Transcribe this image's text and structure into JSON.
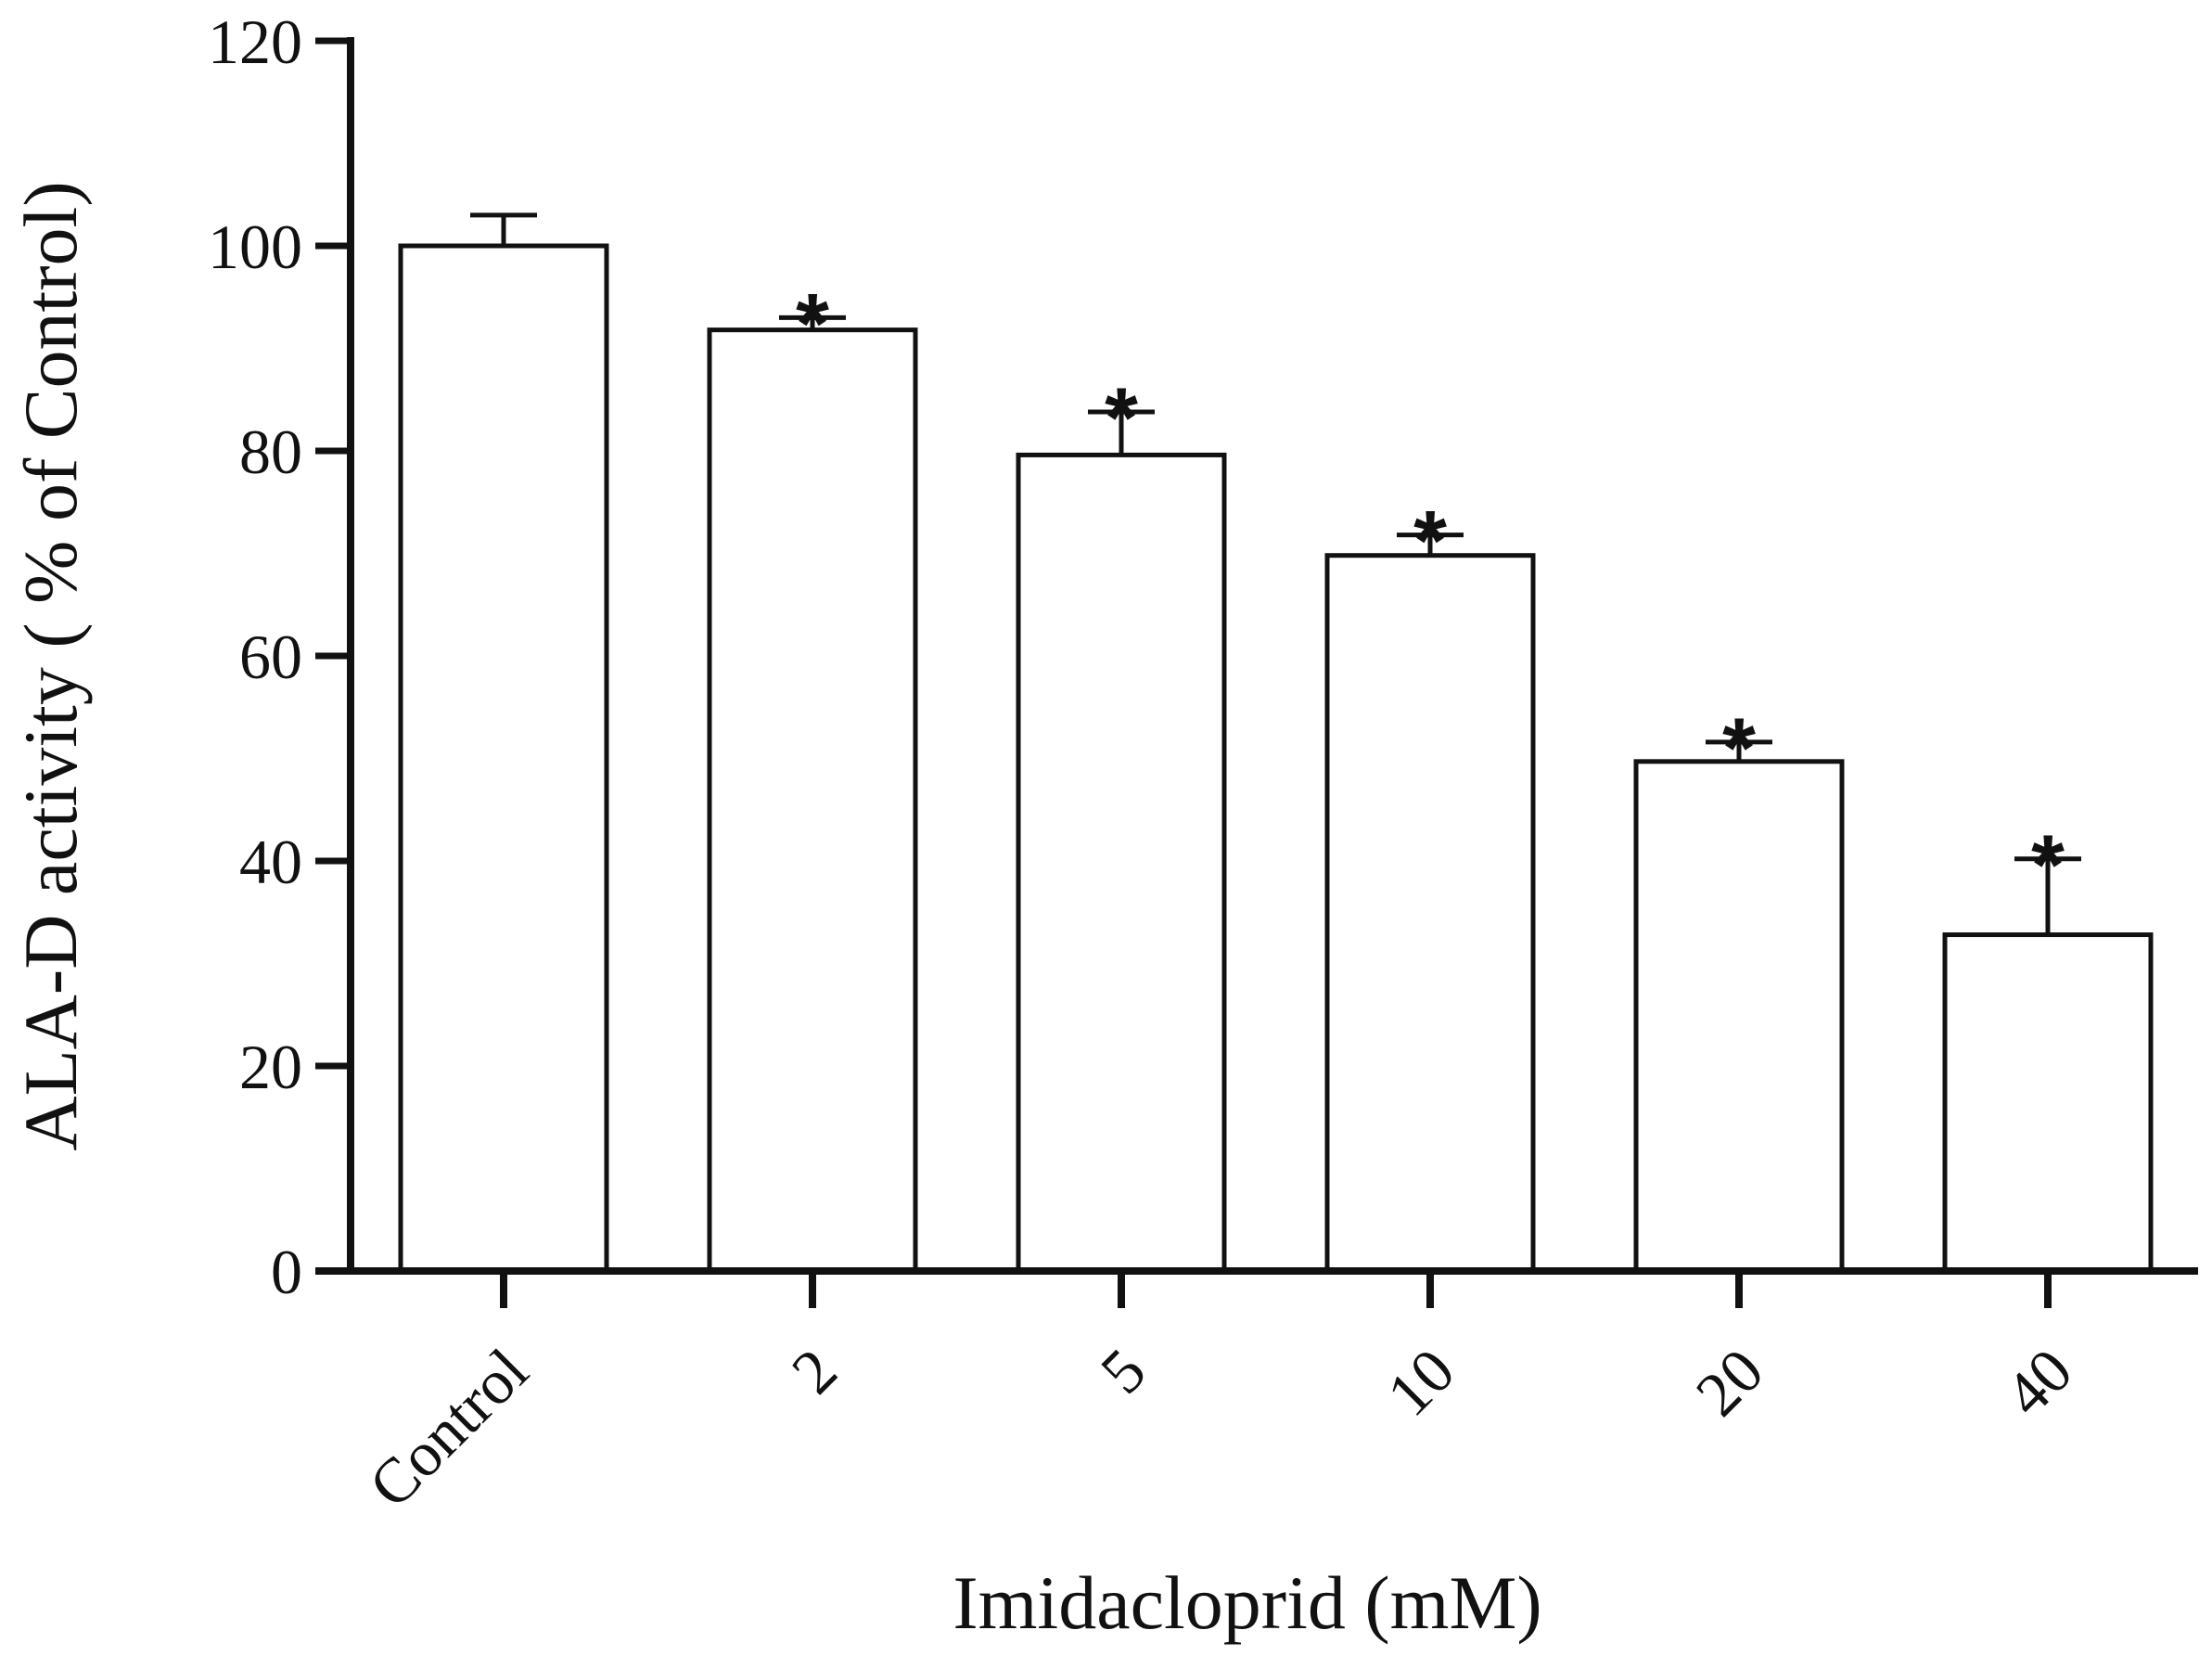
{
  "chart_data": {
    "type": "bar",
    "categories": [
      "Control",
      "2",
      "5",
      "10",
      "20",
      "40"
    ],
    "values": [
      100,
      91.8,
      79.6,
      69.8,
      49.7,
      32.8
    ],
    "errors": [
      3,
      1.2,
      4.2,
      2,
      1.9,
      7.4
    ],
    "significance": [
      "",
      "*",
      "*",
      "*",
      "*",
      "*"
    ],
    "xlabel": "Imidacloprid (mM)",
    "ylabel": "ALA-D activity ( % of Control)",
    "ylim": [
      0,
      120
    ],
    "yticks": [
      0,
      20,
      40,
      60,
      80,
      100,
      120
    ],
    "grid": false,
    "colors": {
      "bar_fill": "#ffffff",
      "stroke": "#111111"
    }
  }
}
